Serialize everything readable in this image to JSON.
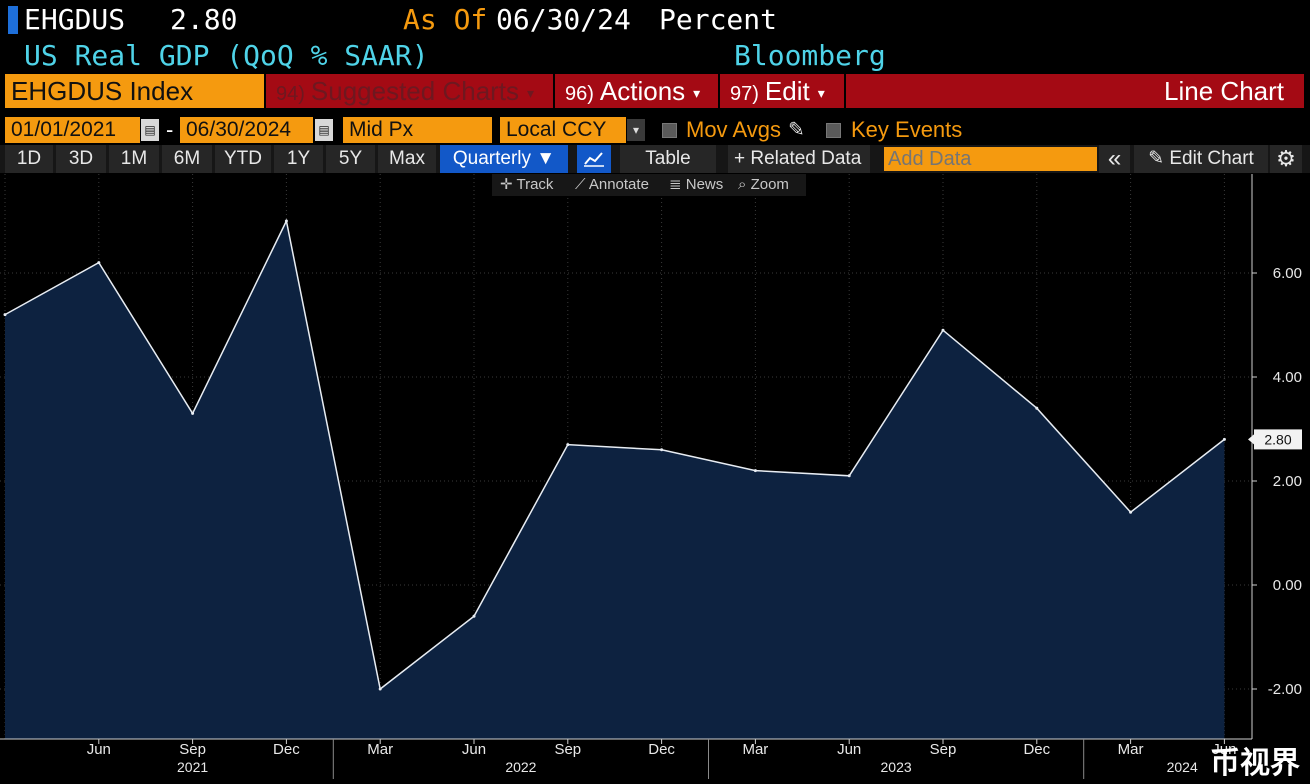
{
  "header": {
    "ticker": "EHGDUS",
    "last_value": "2.80",
    "as_of_label": "As Of",
    "as_of_date": "06/30/24",
    "units": "Percent",
    "description": "US Real GDP (QoQ % SAAR)",
    "source": "Bloomberg"
  },
  "command_bar": {
    "security": "EHGDUS Index",
    "suggested_num": "94)",
    "suggested_label": "Suggested Charts",
    "actions_num": "96)",
    "actions_label": "Actions",
    "edit_num": "97)",
    "edit_label": "Edit",
    "chart_type": "Line Chart"
  },
  "params": {
    "start_date": "01/01/2021",
    "date_sep": "-",
    "end_date": "06/30/2024",
    "price_field": "Mid Px",
    "currency": "Local CCY",
    "mov_avgs_label": "Mov Avgs",
    "key_events_label": "Key Events"
  },
  "toolbar": {
    "ranges": [
      "1D",
      "3D",
      "1M",
      "6M",
      "YTD",
      "1Y",
      "5Y",
      "Max"
    ],
    "frequency": "Quarterly ▼",
    "table_label": "Table",
    "related_label": "+ Related Data",
    "add_data_placeholder": "Add Data",
    "collapse_label": "«",
    "edit_chart_label": "Edit Chart"
  },
  "chart_tools": {
    "track": "Track",
    "annotate": "Annotate",
    "news": "News",
    "zoom": "Zoom"
  },
  "icons": {
    "calendar": "calendar-icon",
    "dropdown": "chevron-down-icon",
    "pencil": "pencil-icon",
    "line_chart": "line-chart-icon",
    "gear": "gear-icon",
    "crosshair": "crosshair-icon",
    "magnifier": "zoom-icon"
  },
  "colors": {
    "accent_orange": "#f59a0f",
    "command_red": "#a40a14",
    "header_cyan": "#4fd3e8",
    "selected_blue": "#1258c8",
    "area_fill": "#0d2240",
    "line": "#e8edf3"
  },
  "chart_data": {
    "type": "area",
    "title": "",
    "xlabel": "",
    "ylabel": "",
    "x": [
      "2021-03",
      "2021-06",
      "2021-09",
      "2021-12",
      "2022-03",
      "2022-06",
      "2022-09",
      "2022-12",
      "2023-03",
      "2023-06",
      "2023-09",
      "2023-12",
      "2024-03",
      "2024-06"
    ],
    "series": [
      {
        "values": [
          5.2,
          6.2,
          3.3,
          7.0,
          -2.0,
          -0.6,
          2.7,
          2.6,
          2.2,
          2.1,
          4.9,
          3.4,
          1.4,
          2.8
        ]
      }
    ],
    "last_value_label": "2.80",
    "ylim": [
      -2.9,
      7.4
    ],
    "y_ticks": [
      6.0,
      4.0,
      2.0,
      0.0,
      -2.0
    ],
    "y_tick_labels": [
      "6.00",
      "4.00",
      "2.00",
      "0.00",
      "-2.00"
    ],
    "x_tick_labels": [
      "Jun",
      "Sep",
      "Dec",
      "Mar",
      "Jun",
      "Sep",
      "Dec",
      "Mar",
      "Jun",
      "Sep",
      "Dec",
      "Mar",
      "Jun"
    ],
    "year_labels": [
      "2021",
      "2022",
      "2023",
      "2024"
    ],
    "y_axis_side": "right",
    "grid": true
  },
  "watermark": "币视界"
}
